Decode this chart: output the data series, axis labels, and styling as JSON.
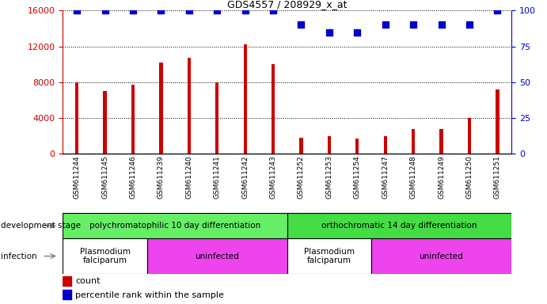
{
  "title": "GDS4557 / 208929_x_at",
  "samples": [
    "GSM611244",
    "GSM611245",
    "GSM611246",
    "GSM611239",
    "GSM611240",
    "GSM611241",
    "GSM611242",
    "GSM611243",
    "GSM611252",
    "GSM611253",
    "GSM611254",
    "GSM611247",
    "GSM611248",
    "GSM611249",
    "GSM611250",
    "GSM611251"
  ],
  "counts": [
    8000,
    7000,
    7700,
    10200,
    10700,
    8000,
    12200,
    10000,
    1800,
    1900,
    1700,
    1900,
    2700,
    2700,
    4000,
    7200
  ],
  "percentiles": [
    100,
    100,
    100,
    100,
    100,
    100,
    100,
    100,
    90,
    85,
    85,
    90,
    90,
    90,
    90,
    100
  ],
  "ylim_left": [
    0,
    16000
  ],
  "ylim_right": [
    0,
    100
  ],
  "yticks_left": [
    0,
    4000,
    8000,
    12000,
    16000
  ],
  "yticks_right": [
    0,
    25,
    50,
    75,
    100
  ],
  "bar_color": "#cc0000",
  "percentile_color": "#0000cc",
  "dev_stage_groups": [
    {
      "label": "polychromatophilic 10 day differentiation",
      "start": 0,
      "end": 8,
      "color": "#66ee66"
    },
    {
      "label": "orthochromatic 14 day differentiation",
      "start": 8,
      "end": 16,
      "color": "#44dd44"
    }
  ],
  "infection_groups": [
    {
      "label": "Plasmodium\nfalciparum",
      "start": 0,
      "end": 3,
      "color": "#ffffff"
    },
    {
      "label": "uninfected",
      "start": 3,
      "end": 8,
      "color": "#ee44ee"
    },
    {
      "label": "Plasmodium\nfalciparum",
      "start": 8,
      "end": 11,
      "color": "#ffffff"
    },
    {
      "label": "uninfected",
      "start": 11,
      "end": 16,
      "color": "#ee44ee"
    }
  ],
  "legend_count_label": "count",
  "legend_percentile_label": "percentile rank within the sample",
  "dev_stage_label": "development stage",
  "infection_label": "infection",
  "tick_color_left": "#cc0000",
  "tick_color_right": "#0000cc",
  "background_color": "#ffffff",
  "plot_bg_color": "#ffffff",
  "xticklabel_bg": "#d0d0d0",
  "bar_width": 0.12,
  "percentile_marker_size": 30
}
